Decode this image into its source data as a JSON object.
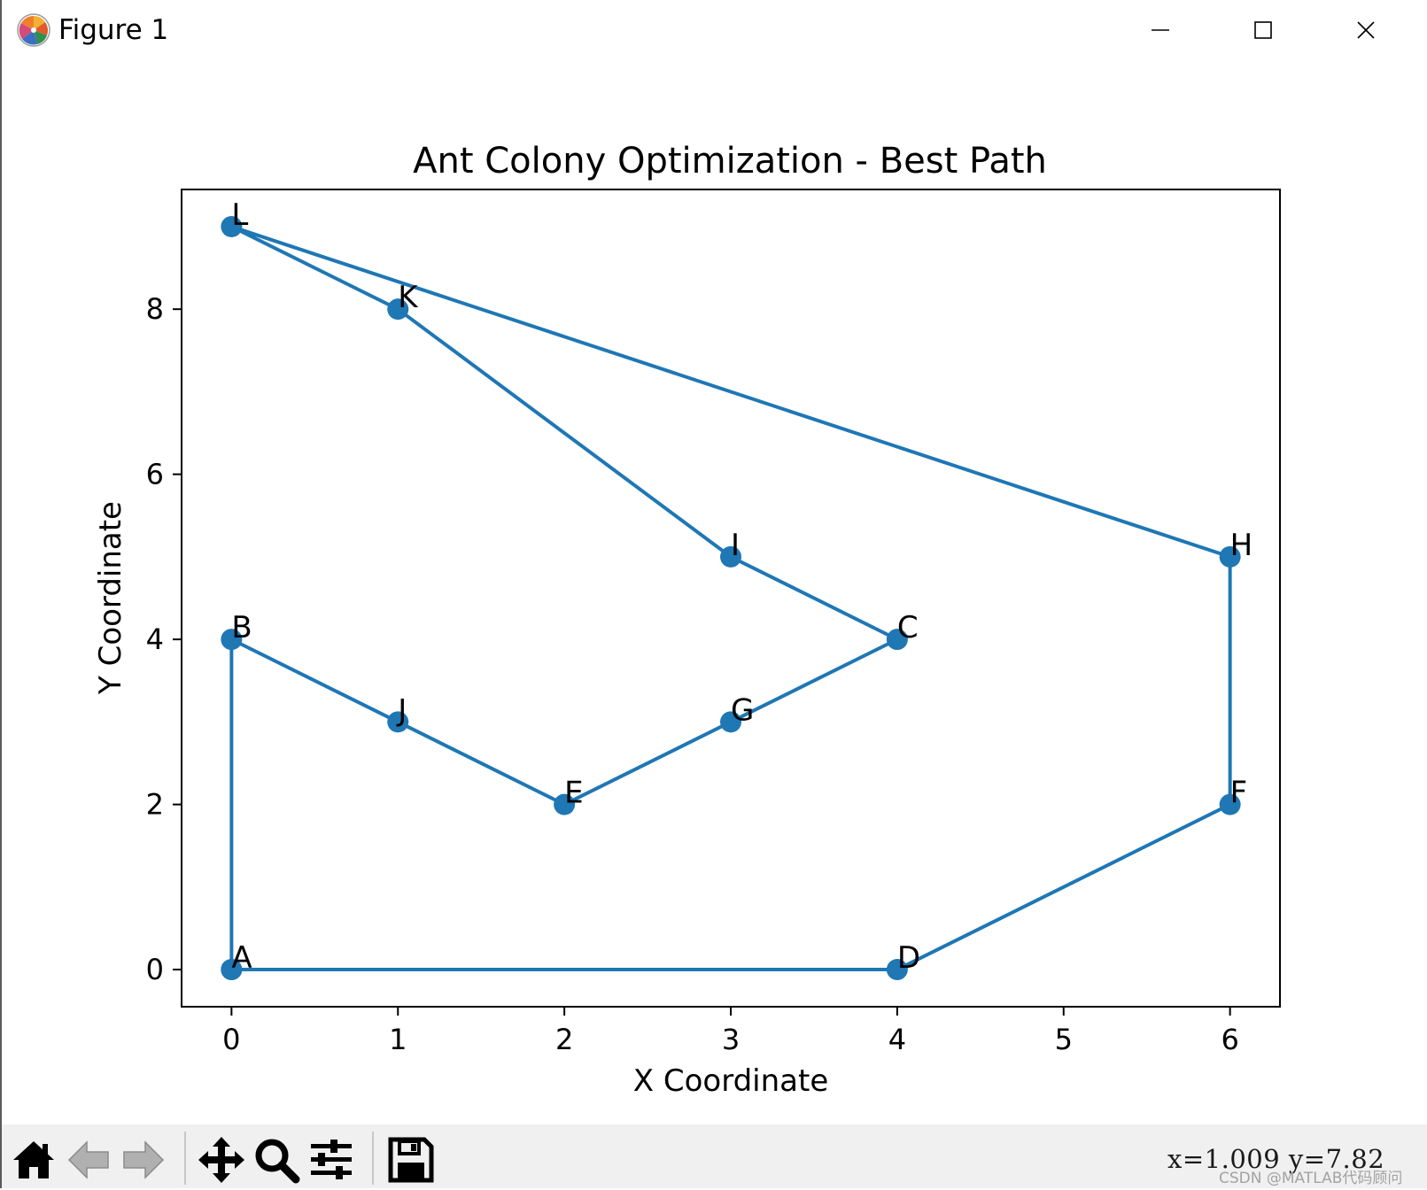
{
  "window": {
    "title": "Figure 1",
    "icon": "matplotlib-logo-icon",
    "controls": {
      "minimize_icon": "minimize-icon",
      "maximize_icon": "maximize-icon",
      "close_icon": "close-icon"
    }
  },
  "chart_data": {
    "type": "line",
    "title": "Ant Colony Optimization - Best Path",
    "xlabel": "X Coordinate",
    "ylabel": "Y Coordinate",
    "xlim": [
      -0.3,
      6.3
    ],
    "ylim": [
      -0.45,
      9.45
    ],
    "xticks": [
      0,
      1,
      2,
      3,
      4,
      5,
      6
    ],
    "yticks": [
      0,
      2,
      4,
      6,
      8
    ],
    "grid": false,
    "line_color": "#1f77b4",
    "marker": "circle",
    "cities": [
      {
        "label": "A",
        "x": 0,
        "y": 0
      },
      {
        "label": "B",
        "x": 0,
        "y": 4
      },
      {
        "label": "C",
        "x": 4,
        "y": 4
      },
      {
        "label": "D",
        "x": 4,
        "y": 0
      },
      {
        "label": "E",
        "x": 2,
        "y": 2
      },
      {
        "label": "F",
        "x": 6,
        "y": 2
      },
      {
        "label": "G",
        "x": 3,
        "y": 3
      },
      {
        "label": "H",
        "x": 6,
        "y": 5
      },
      {
        "label": "I",
        "x": 3,
        "y": 5
      },
      {
        "label": "J",
        "x": 1,
        "y": 3
      },
      {
        "label": "K",
        "x": 1,
        "y": 8
      },
      {
        "label": "L",
        "x": 0,
        "y": 9
      }
    ],
    "path_order": [
      "A",
      "B",
      "J",
      "E",
      "G",
      "C",
      "I",
      "K",
      "L",
      "H",
      "F",
      "D",
      "A"
    ]
  },
  "toolbar": {
    "buttons": [
      {
        "name": "home-button",
        "icon": "home-icon"
      },
      {
        "name": "back-button",
        "icon": "arrow-left-icon"
      },
      {
        "name": "forward-button",
        "icon": "arrow-right-icon"
      },
      {
        "name": "pan-button",
        "icon": "move-arrows-icon"
      },
      {
        "name": "zoom-button",
        "icon": "magnifier-icon"
      },
      {
        "name": "configure-subplots-button",
        "icon": "sliders-icon"
      },
      {
        "name": "save-button",
        "icon": "floppy-disk-icon"
      }
    ],
    "coordinates": "x=1.009  y=7.82",
    "watermark": "CSDN @MATLAB代码顾问"
  }
}
